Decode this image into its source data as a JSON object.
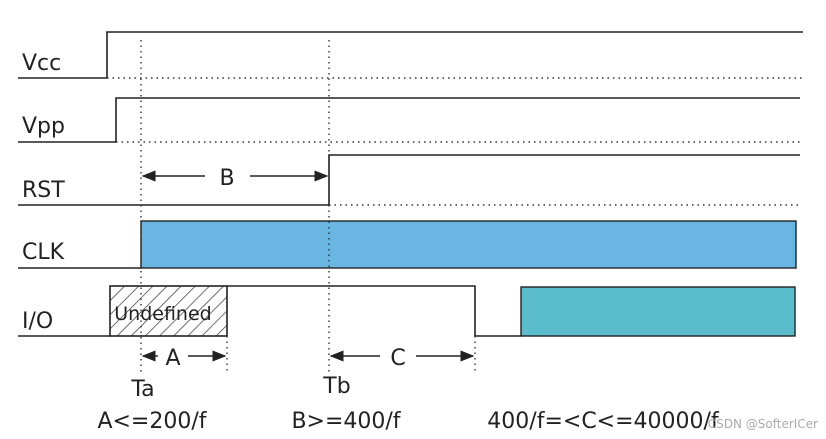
{
  "signals": [
    {
      "label": "Vcc"
    },
    {
      "label": "Vpp"
    },
    {
      "label": "RST"
    },
    {
      "label": "CLK"
    },
    {
      "label": "I/O",
      "region_label": "Undefined"
    }
  ],
  "intervals": [
    {
      "label": "A"
    },
    {
      "label": "B"
    },
    {
      "label": "C"
    }
  ],
  "markers": [
    {
      "label": "Ta"
    },
    {
      "label": "Tb"
    }
  ],
  "constraints": [
    "A<=200/f",
    "B>=400/f",
    "400/f=<C<=40000/f"
  ],
  "watermark": "CSDN @SofterICer"
}
